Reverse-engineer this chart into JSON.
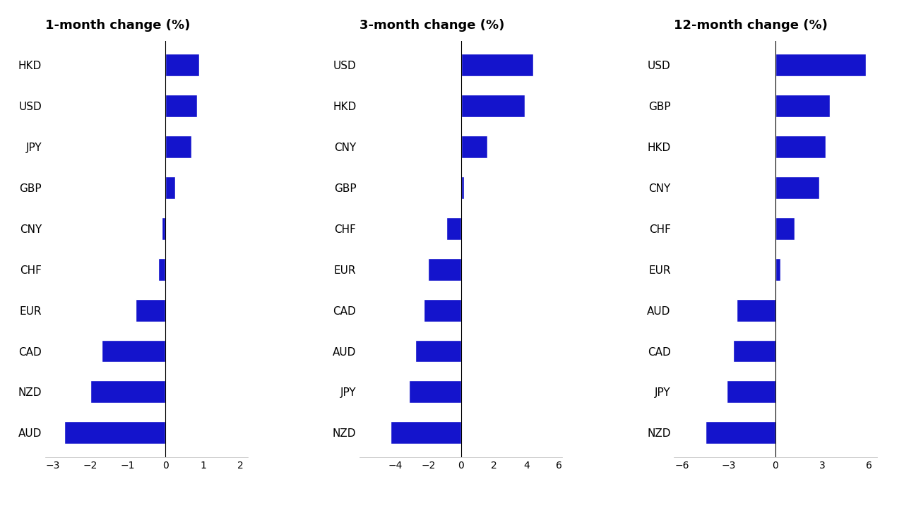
{
  "chart1": {
    "title": "1-month change (%)",
    "currencies": [
      "HKD",
      "USD",
      "JPY",
      "GBP",
      "CNY",
      "CHF",
      "EUR",
      "CAD",
      "NZD",
      "AUD"
    ],
    "values": [
      0.9,
      0.85,
      0.7,
      0.25,
      -0.1,
      -0.2,
      -0.8,
      -1.7,
      -2.0,
      -2.7
    ],
    "xlim": [
      -3.2,
      2.2
    ],
    "xticks": [
      -3,
      -2,
      -1,
      0,
      1,
      2
    ]
  },
  "chart2": {
    "title": "3-month change (%)",
    "currencies": [
      "USD",
      "HKD",
      "CNY",
      "GBP",
      "CHF",
      "EUR",
      "CAD",
      "AUD",
      "JPY",
      "NZD"
    ],
    "values": [
      4.4,
      3.9,
      1.6,
      0.2,
      -0.9,
      -2.0,
      -2.3,
      -2.8,
      -3.2,
      -4.3
    ],
    "xlim": [
      -6.2,
      6.2
    ],
    "xticks": [
      -4,
      -2,
      0,
      2,
      4,
      6
    ]
  },
  "chart3": {
    "title": "12-month change (%)",
    "currencies": [
      "USD",
      "GBP",
      "HKD",
      "CNY",
      "CHF",
      "EUR",
      "AUD",
      "CAD",
      "JPY",
      "NZD"
    ],
    "values": [
      5.8,
      3.5,
      3.2,
      2.8,
      1.2,
      0.3,
      -2.5,
      -2.7,
      -3.1,
      -4.5
    ],
    "xlim": [
      -6.5,
      6.5
    ],
    "xticks": [
      -6,
      -3,
      0,
      3,
      6
    ]
  },
  "bar_color": "#1414CC",
  "background_color": "#ffffff",
  "title_fontsize": 13,
  "label_fontsize": 11,
  "tick_fontsize": 10
}
